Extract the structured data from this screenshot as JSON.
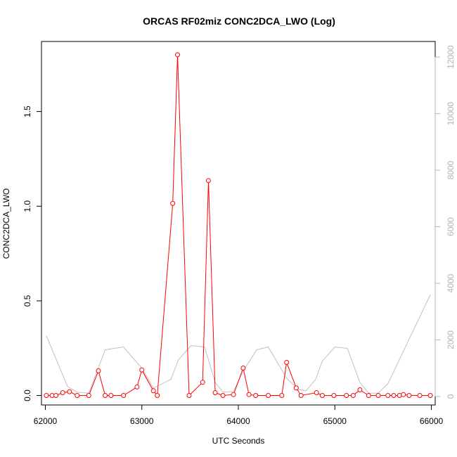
{
  "chart_data": {
    "type": "line",
    "title": "ORCAS RF02miz CONC2DCA_LWO (Log)",
    "xlabel": "UTC Seconds",
    "ylabel": "CONC2DCA_LWO",
    "xlim": [
      61960,
      66040
    ],
    "ylim": [
      -0.05,
      1.87
    ],
    "y2lim": [
      -300,
      12550
    ],
    "x_ticks": [
      {
        "value": 62000,
        "label": "62000"
      },
      {
        "value": 63000,
        "label": "63000"
      },
      {
        "value": 64000,
        "label": "64000"
      },
      {
        "value": 65000,
        "label": "65000"
      },
      {
        "value": 66000,
        "label": "66000"
      }
    ],
    "y_ticks": [
      {
        "value": 0.0,
        "label": "0.0"
      },
      {
        "value": 0.5,
        "label": "0.5"
      },
      {
        "value": 1.0,
        "label": "1.0"
      },
      {
        "value": 1.5,
        "label": "1.5"
      }
    ],
    "y2_ticks": [
      {
        "value": 0,
        "label": "0"
      },
      {
        "value": 2000,
        "label": "2000"
      },
      {
        "value": 4000,
        "label": "4000"
      },
      {
        "value": 6000,
        "label": "6000"
      },
      {
        "value": 8000,
        "label": "8000"
      },
      {
        "value": 10000,
        "label": "10000"
      },
      {
        "value": 12000,
        "label": "12000"
      }
    ],
    "series": [
      {
        "axis": "left",
        "color": "#ff0000",
        "style": "line+circle-markers",
        "x": [
          62010,
          62070,
          62110,
          62180,
          62250,
          62330,
          62450,
          62550,
          62620,
          62680,
          62810,
          62950,
          63000,
          63120,
          63160,
          63320,
          63370,
          63490,
          63630,
          63690,
          63760,
          63840,
          63950,
          64050,
          64110,
          64180,
          64310,
          64450,
          64500,
          64600,
          64650,
          64810,
          64870,
          64990,
          65120,
          65190,
          65260,
          65350,
          65450,
          65550,
          65610,
          65670,
          65710,
          65770,
          65880,
          65990
        ],
        "y": [
          0.0,
          0.0,
          0.0,
          0.015,
          0.02,
          0.0,
          0.0,
          0.13,
          0.0,
          0.0,
          0.0,
          0.045,
          0.135,
          0.025,
          0.0,
          1.015,
          1.8,
          0.0,
          0.07,
          1.135,
          0.015,
          0.0,
          0.005,
          0.145,
          0.005,
          0.0,
          0.0,
          0.0,
          0.175,
          0.04,
          0.0,
          0.015,
          0.0,
          0.0,
          0.0,
          0.0,
          0.03,
          0.0,
          0.0,
          0.0,
          0.0,
          0.0,
          0.005,
          0.0,
          0.0,
          0.0
        ]
      },
      {
        "axis": "right",
        "color": "#c0c0c0",
        "style": "line",
        "x": [
          62010,
          62230,
          62330,
          62450,
          62620,
          62810,
          63000,
          63120,
          63300,
          63380,
          63510,
          63650,
          63760,
          63840,
          63950,
          64050,
          64190,
          64310,
          64500,
          64620,
          64700,
          64800,
          64870,
          65000,
          65130,
          65260,
          65350,
          65450,
          65550,
          65990
        ],
        "y": [
          2150,
          350,
          150,
          120,
          1650,
          1750,
          1000,
          300,
          600,
          1300,
          1800,
          1750,
          500,
          150,
          180,
          900,
          1650,
          1750,
          650,
          250,
          200,
          600,
          1250,
          1750,
          1700,
          500,
          120,
          120,
          450,
          3600
        ]
      }
    ]
  }
}
